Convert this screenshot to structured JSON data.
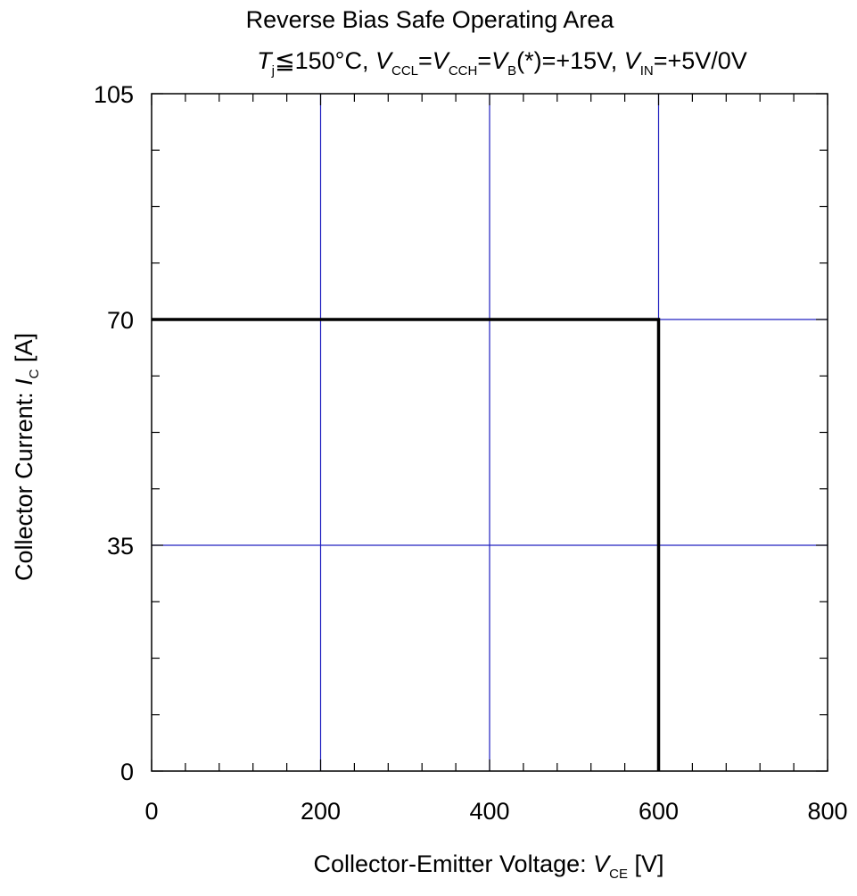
{
  "chart_data": {
    "type": "line",
    "title": "Reverse Bias Safe Operating Area",
    "subtitle_parts": {
      "tj_symbol": "T",
      "tj_sub": "j",
      "tj_rest": "≦150°C, ",
      "vccl_symbol": "V",
      "vccl_sub": "CCL",
      "eq1": "=",
      "vcch_symbol": "V",
      "vcch_sub": "CCH",
      "eq2": "=",
      "vb_symbol": "V",
      "vb_sub": "B",
      "vb_rest": "(*)=+15V, ",
      "vin_symbol": "V",
      "vin_sub": "IN",
      "vin_rest": "=+5V/0V"
    },
    "xlabel_parts": {
      "prefix": "Collector-Emitter Voltage: ",
      "symbol": "V",
      "sub": "CE",
      "suffix": " [V]"
    },
    "ylabel_parts": {
      "prefix": "Collector Current: ",
      "symbol": "I",
      "sub": "C",
      "suffix": " [A]"
    },
    "xlim": [
      0,
      800
    ],
    "ylim": [
      0,
      105
    ],
    "xticks": [
      0,
      200,
      400,
      600,
      800
    ],
    "yticks": [
      0,
      35,
      70,
      105
    ],
    "x_minor_step": 40,
    "y_minor_step": 8.75,
    "grid": true,
    "grid_color": "#2020c0",
    "line_color": "#000000",
    "series": [
      {
        "x": [
          0,
          600,
          600
        ],
        "y": [
          70,
          70,
          0
        ]
      }
    ]
  }
}
